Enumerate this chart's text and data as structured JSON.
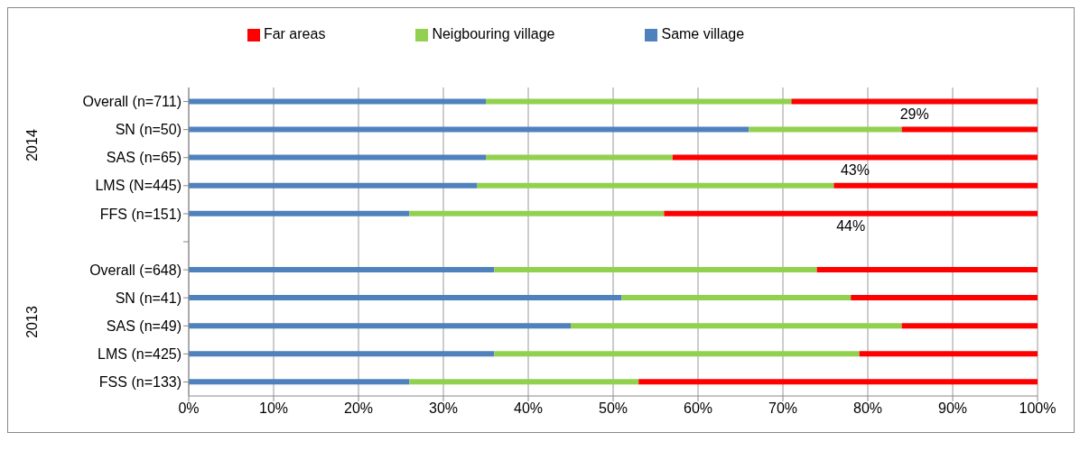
{
  "chart_data": {
    "type": "bar",
    "orientation": "horizontal",
    "stacked": true,
    "categories": [
      "Overall (n=711)",
      "SN (n=50)",
      "SAS (n=65)",
      "LMS (N=445)",
      "FFS (n=151)",
      null,
      "Overall (=648)",
      "SN (n=41)",
      "SAS (n=49)",
      "LMS (n=425)",
      "FSS (n=133)"
    ],
    "series": [
      {
        "name": "Same village",
        "color": "#4f81bd",
        "values": [
          35,
          66,
          35,
          34,
          26,
          null,
          36,
          51,
          45,
          36,
          26
        ]
      },
      {
        "name": "Neigbouring village",
        "color": "#92d050",
        "values": [
          36,
          18,
          22,
          42,
          30,
          null,
          38,
          27,
          39,
          43,
          27
        ]
      },
      {
        "name": "Far areas",
        "color": "#ff0000",
        "values": [
          29,
          16,
          43,
          24,
          44,
          null,
          26,
          22,
          16,
          21,
          47
        ],
        "value_labels": [
          "29%",
          null,
          "43%",
          null,
          "44%",
          null,
          null,
          null,
          null,
          null,
          null
        ]
      }
    ],
    "xlim": [
      0,
      100
    ],
    "xticks": [
      {
        "value": 0,
        "label": "0%"
      },
      {
        "value": 10,
        "label": "10%"
      },
      {
        "value": 20,
        "label": "20%"
      },
      {
        "value": 30,
        "label": "30%"
      },
      {
        "value": 40,
        "label": "40%"
      },
      {
        "value": 50,
        "label": "50%"
      },
      {
        "value": 60,
        "label": "60%"
      },
      {
        "value": 70,
        "label": "70%"
      },
      {
        "value": 80,
        "label": "80%"
      },
      {
        "value": 90,
        "label": "90%"
      },
      {
        "value": 100,
        "label": "100%"
      }
    ],
    "grid": "x",
    "legend": "top",
    "annotations": [
      "2014",
      "2013"
    ]
  }
}
